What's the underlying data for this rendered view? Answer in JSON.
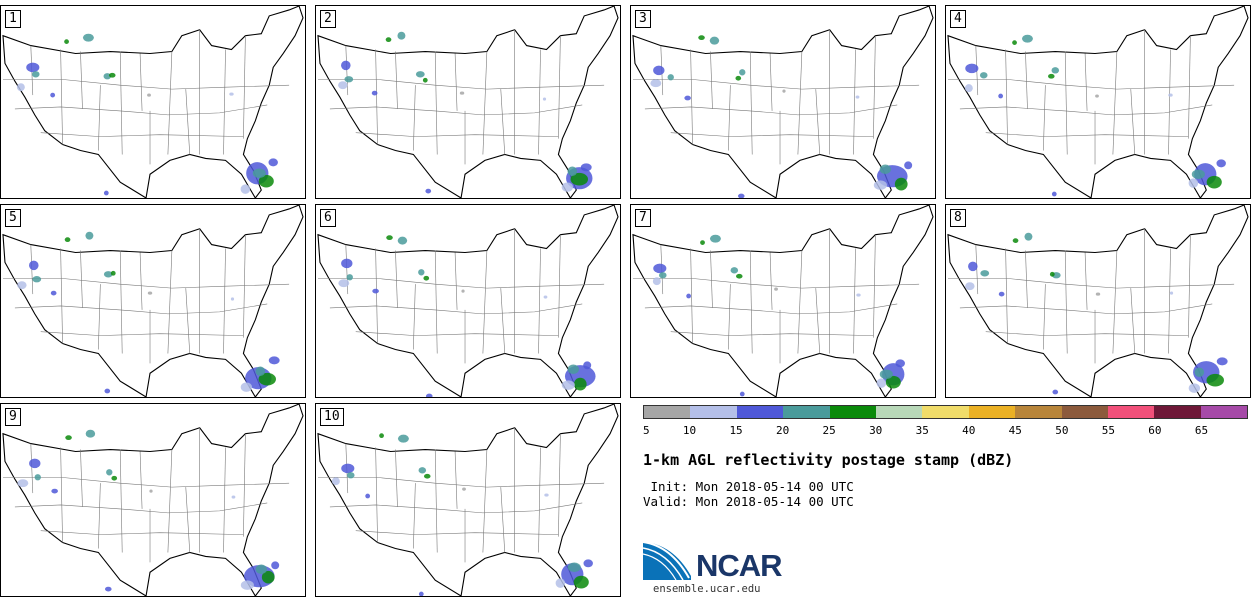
{
  "figure": {
    "title": "1-km AGL reflectivity postage stamp (dBZ)",
    "init_line": " Init: Mon 2018-05-14 00 UTC",
    "valid_line": "Valid: Mon 2018-05-14 00 UTC"
  },
  "panels": [
    {
      "label": "1"
    },
    {
      "label": "2"
    },
    {
      "label": "3"
    },
    {
      "label": "4"
    },
    {
      "label": "5"
    },
    {
      "label": "6"
    },
    {
      "label": "7"
    },
    {
      "label": "8"
    },
    {
      "label": "9"
    },
    {
      "label": "10"
    }
  ],
  "colorbar": {
    "ticks": [
      "5",
      "10",
      "15",
      "20",
      "25",
      "30",
      "35",
      "40",
      "45",
      "50",
      "55",
      "60",
      "65"
    ],
    "colors": [
      "#a6a6a6",
      "#b4bfe8",
      "#4f58d8",
      "#4a9b9b",
      "#0a8a0a",
      "#b8d8b8",
      "#f0dc6a",
      "#ebb125",
      "#b8853a",
      "#8c5a3c",
      "#f1507a",
      "#6e1838",
      "#a64aa8"
    ]
  },
  "logo": {
    "name": "NCAR",
    "url": "ensemble.ucar.edu"
  }
}
